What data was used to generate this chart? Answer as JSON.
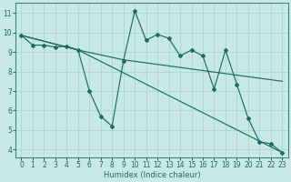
{
  "background_color": "#c8e8e5",
  "grid_color": "#a8d0cc",
  "line_color": "#1a6b65",
  "xlabel": "Humidex (Indice chaleur)",
  "xlim": [
    -0.5,
    23.5
  ],
  "ylim": [
    3.6,
    11.5
  ],
  "xticks": [
    0,
    1,
    2,
    3,
    4,
    5,
    6,
    7,
    8,
    9,
    10,
    11,
    12,
    13,
    14,
    15,
    16,
    17,
    18,
    19,
    20,
    21,
    22,
    23
  ],
  "yticks": [
    4,
    5,
    6,
    7,
    8,
    9,
    10,
    11
  ],
  "line1_x": [
    0,
    1,
    2,
    3,
    4,
    5,
    6,
    7,
    8,
    9,
    10,
    11,
    12,
    13,
    14,
    15,
    16,
    17,
    18,
    19,
    20,
    21,
    22,
    23
  ],
  "line1_y": [
    9.85,
    9.35,
    9.35,
    9.25,
    9.3,
    9.1,
    7.0,
    5.7,
    5.2,
    8.55,
    11.1,
    9.6,
    9.9,
    9.7,
    8.8,
    9.1,
    8.8,
    7.1,
    9.1,
    7.35,
    5.6,
    4.4,
    4.3,
    3.85
  ],
  "line2_x": [
    0,
    5,
    9,
    23
  ],
  "line2_y": [
    9.85,
    9.1,
    8.6,
    7.5
  ],
  "line3_x": [
    0,
    5,
    23
  ],
  "line3_y": [
    9.85,
    9.1,
    3.85
  ],
  "markersize": 2.0,
  "linewidth": 0.85,
  "tick_fontsize": 5.5,
  "xlabel_fontsize": 6.0
}
